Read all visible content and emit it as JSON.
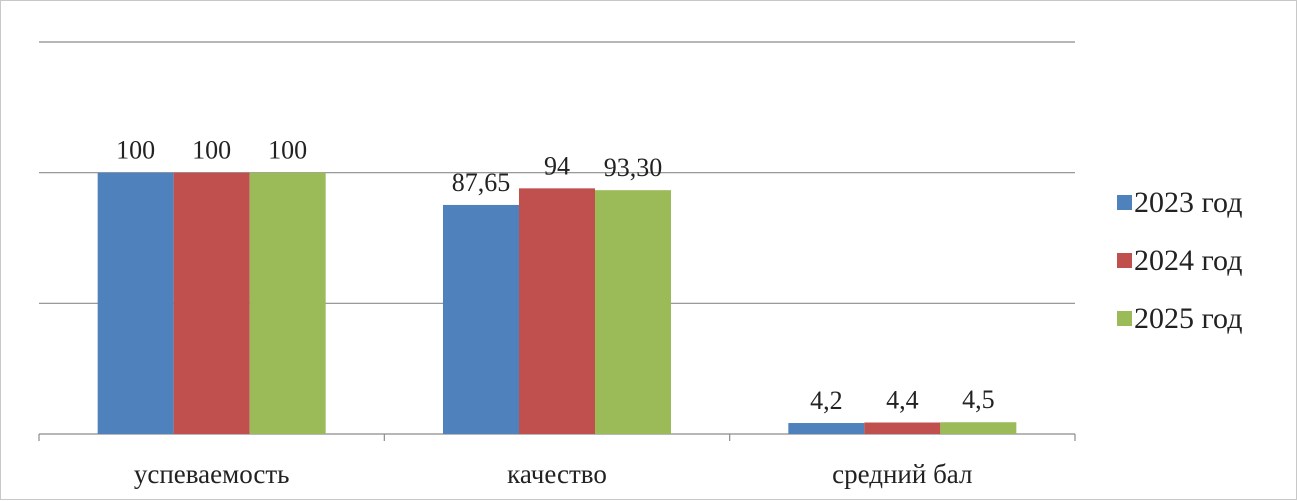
{
  "chart_data": {
    "type": "bar",
    "categories": [
      "успеваемость",
      "качество",
      "средний бал"
    ],
    "series": [
      {
        "name": "2023 год",
        "color": "#4f81bd",
        "values": [
          100,
          87.65,
          4.2
        ],
        "labels": [
          "100",
          "87,65",
          "4,2"
        ]
      },
      {
        "name": "2024 год",
        "color": "#c0504d",
        "values": [
          100,
          94,
          4.4
        ],
        "labels": [
          "100",
          "94",
          "4,4"
        ]
      },
      {
        "name": "2025 год",
        "color": "#9bbb59",
        "values": [
          100,
          93.3,
          4.5
        ],
        "labels": [
          "100",
          "93,30",
          "4,5"
        ]
      }
    ],
    "ylim": [
      0,
      150
    ],
    "grid": true,
    "legend_position": "right"
  }
}
